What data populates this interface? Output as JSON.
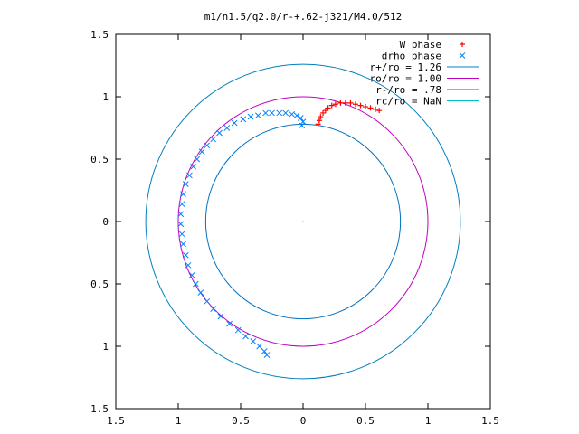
{
  "chart_data": {
    "type": "scatter",
    "title": "m1/n1.5/q2.0/r-+.62-j321/M4.0/512",
    "xlabel": "",
    "ylabel": "",
    "xlim": [
      -1.5,
      1.5
    ],
    "ylim": [
      -1.5,
      1.5
    ],
    "x_ticks": [
      -1.5,
      -1,
      -0.5,
      0,
      0.5,
      1,
      1.5
    ],
    "y_ticks": [
      -1.5,
      -1,
      -0.5,
      0,
      0.5,
      1,
      1.5
    ],
    "x_tick_labels": [
      "1.5",
      "1",
      "0.5",
      "0",
      "0.5",
      "1",
      "1.5"
    ],
    "y_tick_labels": [
      "1.5",
      "1",
      "0.5",
      "0",
      "0.5",
      "1",
      "1.5"
    ],
    "grid": false,
    "legend_position": "top-right",
    "series": [
      {
        "name": "W phase",
        "marker": "plus",
        "color": "#ff0000",
        "points": [
          [
            0.12,
            0.78
          ],
          [
            0.13,
            0.81
          ],
          [
            0.14,
            0.84
          ],
          [
            0.16,
            0.87
          ],
          [
            0.18,
            0.89
          ],
          [
            0.2,
            0.91
          ],
          [
            0.23,
            0.93
          ],
          [
            0.26,
            0.94
          ],
          [
            0.3,
            0.95
          ],
          [
            0.34,
            0.95
          ],
          [
            0.38,
            0.95
          ],
          [
            0.42,
            0.94
          ],
          [
            0.46,
            0.93
          ],
          [
            0.5,
            0.92
          ],
          [
            0.54,
            0.91
          ],
          [
            0.58,
            0.9
          ],
          [
            0.61,
            0.89
          ]
        ]
      },
      {
        "name": "drho phase",
        "marker": "x",
        "color": "#0080ff",
        "points": [
          [
            -0.01,
            0.77
          ],
          [
            0.0,
            0.8
          ],
          [
            -0.02,
            0.83
          ],
          [
            -0.05,
            0.85
          ],
          [
            -0.09,
            0.86
          ],
          [
            -0.14,
            0.87
          ],
          [
            -0.19,
            0.87
          ],
          [
            -0.25,
            0.87
          ],
          [
            -0.3,
            0.87
          ],
          [
            -0.36,
            0.85
          ],
          [
            -0.42,
            0.84
          ],
          [
            -0.48,
            0.82
          ],
          [
            -0.55,
            0.79
          ],
          [
            -0.61,
            0.75
          ],
          [
            -0.67,
            0.71
          ],
          [
            -0.72,
            0.66
          ],
          [
            -0.77,
            0.61
          ],
          [
            -0.81,
            0.56
          ],
          [
            -0.85,
            0.5
          ],
          [
            -0.88,
            0.44
          ],
          [
            -0.91,
            0.37
          ],
          [
            -0.94,
            0.3
          ],
          [
            -0.96,
            0.22
          ],
          [
            -0.97,
            0.14
          ],
          [
            -0.98,
            0.06
          ],
          [
            -0.98,
            -0.02
          ],
          [
            -0.97,
            -0.1
          ],
          [
            -0.96,
            -0.18
          ],
          [
            -0.94,
            -0.27
          ],
          [
            -0.92,
            -0.35
          ],
          [
            -0.89,
            -0.43
          ],
          [
            -0.86,
            -0.5
          ],
          [
            -0.82,
            -0.57
          ],
          [
            -0.77,
            -0.64
          ],
          [
            -0.72,
            -0.7
          ],
          [
            -0.66,
            -0.76
          ],
          [
            -0.59,
            -0.82
          ],
          [
            -0.52,
            -0.87
          ],
          [
            -0.46,
            -0.92
          ],
          [
            -0.4,
            -0.96
          ],
          [
            -0.35,
            -1.0
          ],
          [
            -0.31,
            -1.04
          ],
          [
            -0.29,
            -1.07
          ]
        ]
      },
      {
        "name": "r+/ro = 1.26",
        "type": "circle",
        "radius": 1.26,
        "color": "#0080c0"
      },
      {
        "name": "ro/ro = 1.00",
        "type": "circle",
        "radius": 1.0,
        "color": "#c000c0"
      },
      {
        "name": "r-/ro = .78",
        "type": "circle",
        "radius": 0.78,
        "color": "#0070c0"
      },
      {
        "name": "rc/ro = NaN",
        "type": "circle",
        "radius": null,
        "color": "#00c0c0"
      }
    ]
  }
}
